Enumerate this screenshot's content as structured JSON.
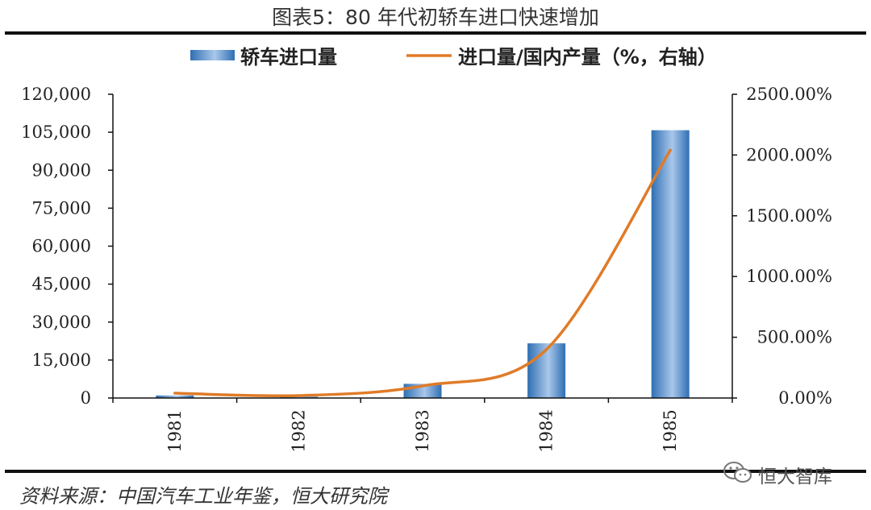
{
  "title": "图表5：80 年代初轿车进口快速增加",
  "source": "资料来源：中国汽车工业年鉴，恒大研究院",
  "watermark": "恒大智库",
  "watermark_icon": "wechat-icon",
  "colors": {
    "bar_dark": "#2f6fb3",
    "bar_light": "#a9c7ea",
    "line": "#e07b27",
    "axis": "#111111"
  },
  "chart_data": {
    "type": "bar",
    "categories": [
      "1981",
      "1982",
      "1983",
      "1984",
      "1985"
    ],
    "series": [
      {
        "name": "轿车进口量",
        "type": "bar",
        "axis": "left",
        "values": [
          1000,
          500,
          5600,
          21600,
          105800
        ]
      },
      {
        "name": "进口量/国内产量（%，右轴）",
        "type": "line",
        "axis": "right",
        "values": [
          40,
          20,
          100,
          400,
          2040
        ]
      }
    ],
    "y_left": {
      "min": 0,
      "max": 120000,
      "ticks": [
        "0",
        "15,000",
        "30,000",
        "45,000",
        "60,000",
        "75,000",
        "90,000",
        "105,000",
        "120,000"
      ]
    },
    "y_right": {
      "min": 0,
      "max": 2500,
      "ticks": [
        "0.00%",
        "500.00%",
        "1000.00%",
        "1500.00%",
        "2000.00%",
        "2500.00%"
      ]
    },
    "legend_position": "top",
    "grid": false
  }
}
